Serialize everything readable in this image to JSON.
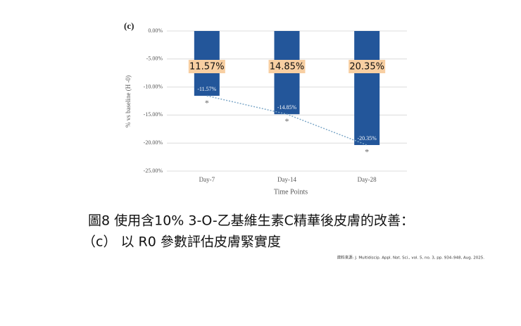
{
  "chart_data": {
    "type": "bar",
    "panel_label": "(c)",
    "ylabel": "% vs baseline (H -0)",
    "xlabel": "Time Points",
    "categories": [
      "Day-7",
      "Day-14",
      "Day-28"
    ],
    "values": [
      -11.57,
      -14.85,
      -20.35
    ],
    "value_labels": [
      "-11.57%",
      "-14.85%",
      "-20.35%"
    ],
    "callouts": [
      "11.57%",
      "14.85%",
      "20.35%"
    ],
    "significance": [
      "*",
      "*",
      "*"
    ],
    "color": "#23569a",
    "trendline": true,
    "ylim": [
      -25,
      0
    ],
    "yticks": [
      {
        "value": 0,
        "label": "0.00%"
      },
      {
        "value": -5,
        "label": "-5.00%"
      },
      {
        "value": -10,
        "label": "-10.00%"
      },
      {
        "value": -15,
        "label": "-15.00%"
      },
      {
        "value": -20,
        "label": "-20.00%"
      },
      {
        "value": -25,
        "label": "-25.00%"
      }
    ],
    "grid": true
  },
  "caption": {
    "line1": "圖8 使用含10% 3-O-乙基維生素C精華後皮膚的改善：",
    "line2": "（c） 以 R0 參數評估皮膚緊實度",
    "source": "資料來源: J. Multidiscip. Appl. Nat. Sci., vol. 5, no. 3, pp. 934–948, Aug. 2025."
  }
}
